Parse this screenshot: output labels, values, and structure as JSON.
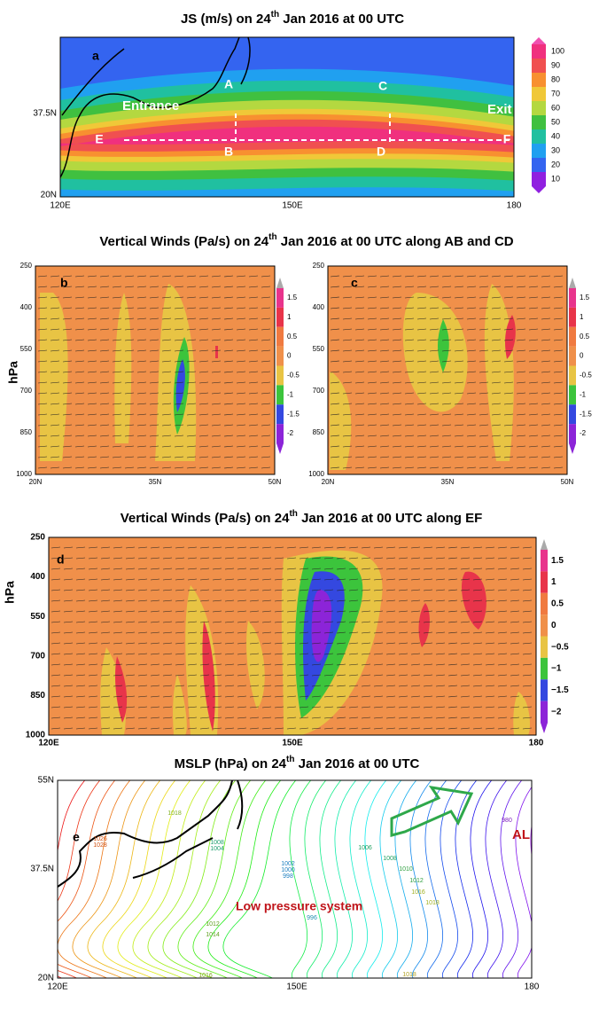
{
  "panel_a": {
    "title": {
      "pre": "JS (m/s) on 24",
      "sup": "th",
      "post": " Jan 2016 at 00 UTC"
    },
    "label": "a",
    "points": [
      "A",
      "B",
      "C",
      "D",
      "E",
      "F"
    ],
    "regions": [
      "Entrance",
      "Exit"
    ],
    "yticks": [
      "37.5N",
      "20N"
    ],
    "xticks": [
      "120E",
      "150E",
      "180"
    ],
    "colorbar": [
      "100",
      "90",
      "80",
      "70",
      "60",
      "50",
      "40",
      "30",
      "20",
      "10"
    ]
  },
  "title_bc": {
    "pre": "Vertical Winds (Pa/s) on 24",
    "sup": "th",
    "post": " Jan 2016 at 00 UTC along AB and CD"
  },
  "panel_b": {
    "label": "b",
    "axis_title": "hPa",
    "yticks": [
      "250",
      "400",
      "550",
      "700",
      "850",
      "1000"
    ],
    "xticks": [
      "20N",
      "35N",
      "50N"
    ],
    "colorbar": [
      "1.5",
      "1",
      "0.5",
      "0",
      "-0.5",
      "-1",
      "-1.5",
      "-2"
    ]
  },
  "panel_c": {
    "label": "c",
    "yticks": [
      "250",
      "400",
      "550",
      "700",
      "850",
      "1000"
    ],
    "xticks": [
      "20N",
      "35N",
      "50N"
    ],
    "colorbar": [
      "1.5",
      "1",
      "0.5",
      "0",
      "-0.5",
      "-1",
      "-1.5",
      "-2"
    ]
  },
  "title_d": {
    "pre": "Vertical Winds (Pa/s) on 24",
    "sup": "th",
    "post": " Jan 2016 at 00 UTC along EF"
  },
  "panel_d": {
    "label": "d",
    "axis_title": "hPa",
    "yticks": [
      "250",
      "400",
      "550",
      "700",
      "850",
      "1000"
    ],
    "xticks": [
      "120E",
      "150E",
      "180"
    ],
    "colorbar": [
      "1.5",
      "1",
      "0.5",
      "0",
      "−0.5",
      "−1",
      "−1.5",
      "−2"
    ]
  },
  "title_e": {
    "pre": "MSLP (hPa) on 24",
    "sup": "th",
    "post": " Jan 2016 at 00 UTC"
  },
  "panel_e": {
    "label": "e",
    "yticks": [
      "55N",
      "37.5N",
      "20N"
    ],
    "xticks": [
      "120E",
      "150E",
      "180"
    ],
    "annotations": [
      "AL",
      "Low pressure system"
    ],
    "contour_labels": [
      "1026",
      "1028",
      "1018",
      "1008",
      "1004",
      "1002",
      "1000",
      "998",
      "996",
      "1006",
      "1008",
      "1010",
      "1012",
      "1016",
      "1018",
      "1012",
      "1014",
      "1016",
      "1018",
      "980"
    ]
  }
}
